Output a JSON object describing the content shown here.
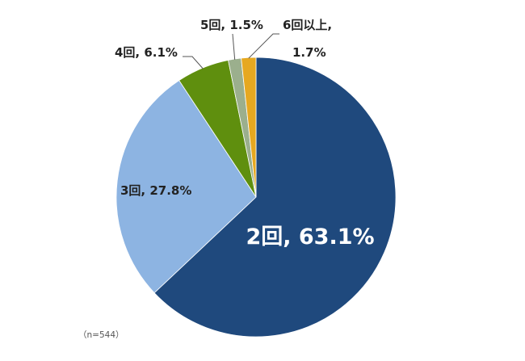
{
  "chart_data": {
    "type": "pie",
    "slices": [
      {
        "label": "2回",
        "value": 63.1,
        "color": "#1F497D"
      },
      {
        "label": "3回",
        "value": 27.8,
        "color": "#8DB4E2"
      },
      {
        "label": "4回",
        "value": 6.1,
        "color": "#5F8F0E"
      },
      {
        "label": "5回",
        "value": 1.5,
        "color": "#9BAF8D"
      },
      {
        "label": "6回以上",
        "value": 1.7,
        "color": "#E6A820"
      }
    ],
    "data_labels": [
      "2回, 63.1%",
      "3回, 27.8%",
      "4回, 6.1%",
      "5回, 1.5%",
      "6回以上,",
      "1.7%"
    ],
    "note": "（n=544）",
    "start": "12 o'clock",
    "direction": "clockwise"
  }
}
